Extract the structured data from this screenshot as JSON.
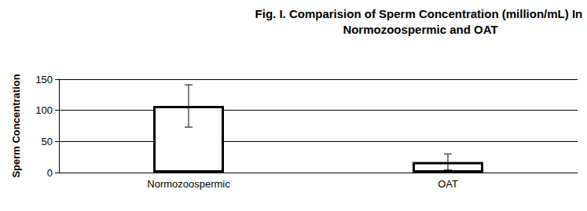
{
  "chart_data": {
    "type": "bar",
    "title": "Fig. I. Comparision of Sperm Concentration (million/mL) In Normozoospermic and OAT",
    "y_label": "Sperm Concentration",
    "categories": [
      "Normozoospermic",
      "OAT"
    ],
    "values": [
      107,
      17
    ],
    "errors": [
      34,
      13
    ],
    "color": "#ffffff",
    "ylim": [
      0,
      150
    ],
    "yticks": [
      0,
      50,
      100,
      150
    ],
    "grid": true
  }
}
